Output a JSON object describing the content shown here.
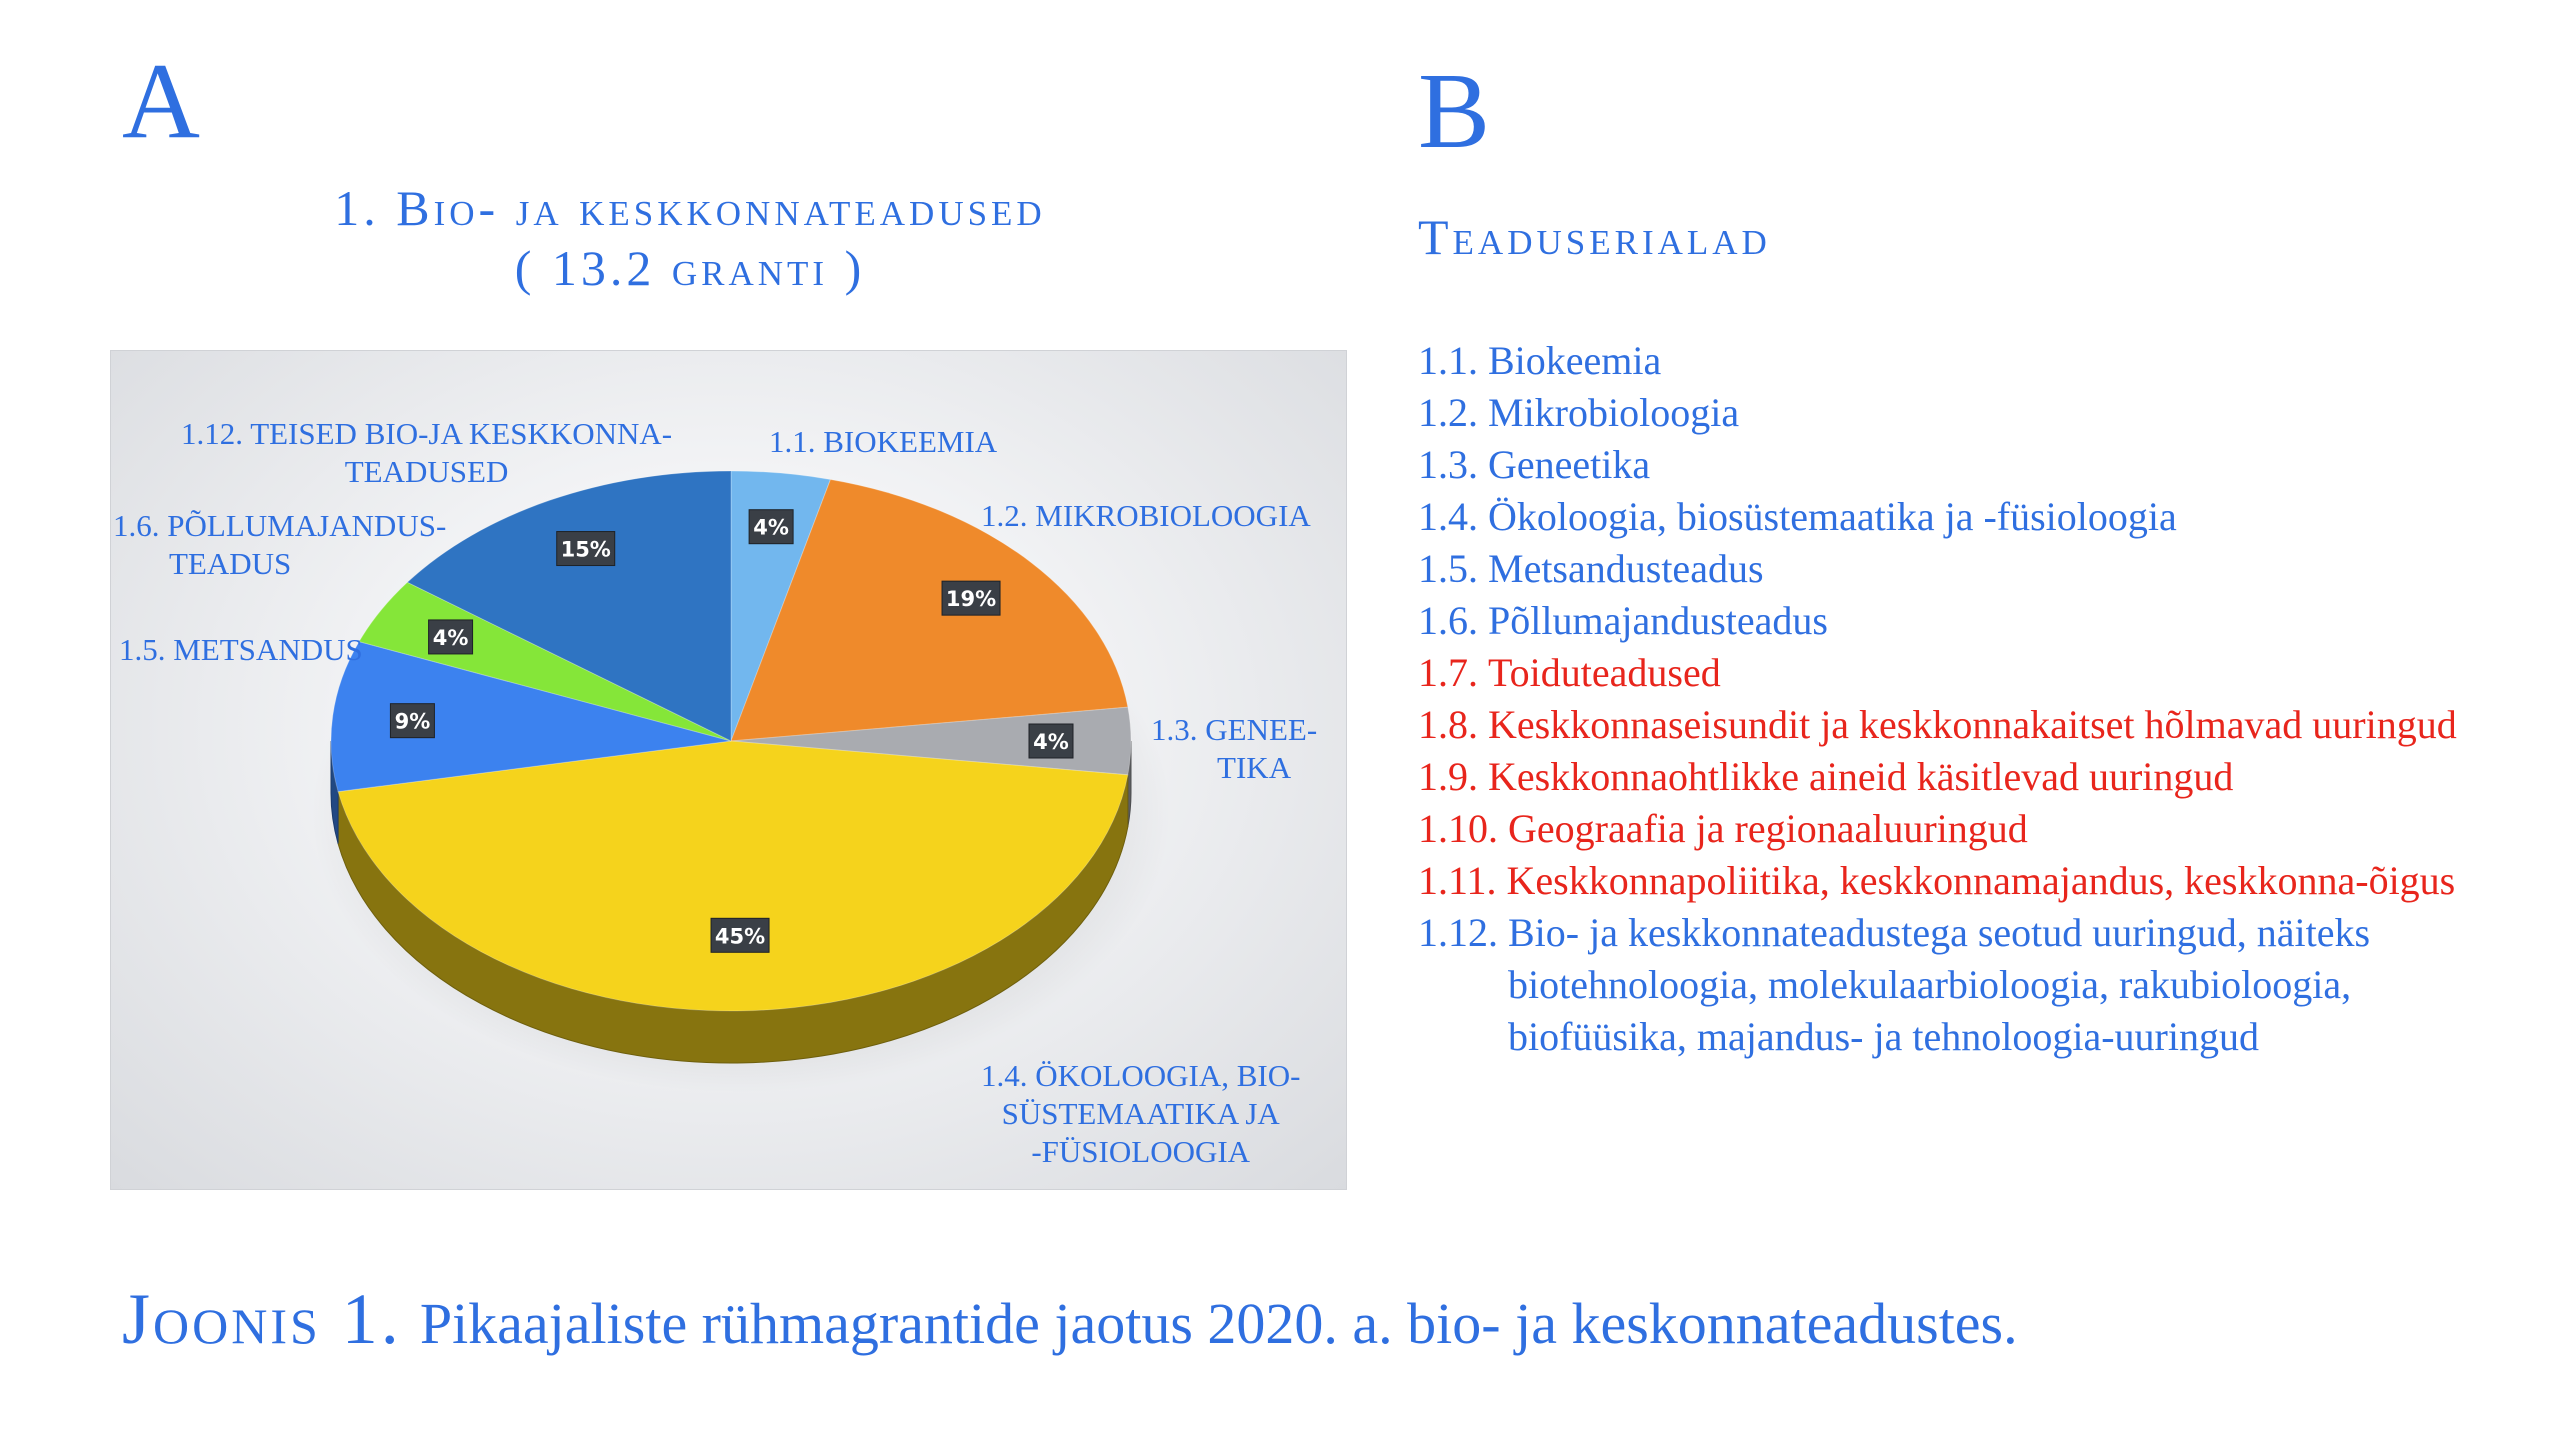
{
  "panel_a_letter": "A",
  "panel_b_letter": "B",
  "panel_a_title_line1": "1. Bio- ja keskkonnateadused",
  "panel_a_title_line2": "( 13.2 granti )",
  "panel_b_title": "Teaduserialad",
  "colors": {
    "accent_blue": "#2f6fe0",
    "red": "#e8251c"
  },
  "chart_data": {
    "type": "pie",
    "slices": [
      {
        "label": "1.1. BIOKEEMIA",
        "value": 4,
        "value_label": "4%",
        "color": "#72b7ee"
      },
      {
        "label": "1.2. MIKROBIOLOOGIA",
        "value": 19,
        "value_label": "19%",
        "color": "#ef8a2b"
      },
      {
        "label": "1.3. GENEE- TIKA",
        "value": 4,
        "value_label": "4%",
        "color": "#a9abb0"
      },
      {
        "label": "1.4. ÖKOLOOGIA, BIO- SÜSTEMAATIKA JA -FÜSIOLOOGIA",
        "value": 45,
        "value_label": "45%",
        "color": "#f5d31c"
      },
      {
        "label": "1.5. METSANDUS",
        "value": 9,
        "value_label": "9%",
        "color": "#3c82ef"
      },
      {
        "label": "1.6. PÕLLUMAJANDUS- TEADUS",
        "value": 4,
        "value_label": "4%",
        "color": "#85e639"
      },
      {
        "label": "1.12. TEISED BIO-JA KESKKONNA- TEADUSED",
        "value": 15,
        "value_label": "15%",
        "color": "#2f74c2"
      }
    ]
  },
  "slice_labels": {
    "s11": "1.1. BIOKEEMIA",
    "s12": "1.2. MIKROBIOLOOGIA",
    "s13_l1": "1.3. GENEE-",
    "s13_l2": "TIKA",
    "s14_l1": "1.4. ÖKOLOOGIA, BIO-",
    "s14_l2": "SÜSTEMAATIKA JA",
    "s14_l3": "-FÜSIOLOOGIA",
    "s15": "1.5. METSANDUS",
    "s16_l1": "1.6. PÕLLUMAJANDUS-",
    "s16_l2": "TEADUS",
    "s112_l1": "1.12. TEISED BIO-JA KESKKONNA-",
    "s112_l2": "TEADUSED"
  },
  "disciplines": [
    {
      "num": "1.1.",
      "text": "Biokeemia",
      "color": "blue"
    },
    {
      "num": "1.2.",
      "text": "Mikrobioloogia",
      "color": "blue"
    },
    {
      "num": "1.3.",
      "text": "Geneetika",
      "color": "blue"
    },
    {
      "num": "1.4.",
      "text": "Ökoloogia, biosüstemaatika ja -füsioloogia",
      "color": "blue"
    },
    {
      "num": "1.5.",
      "text": "Metsandusteadus",
      "color": "blue"
    },
    {
      "num": "1.6.",
      "text": "Põllumajandusteadus",
      "color": "blue"
    },
    {
      "num": "1.7.",
      "text": "Toiduteadused",
      "color": "red"
    },
    {
      "num": "1.8.",
      "text": "Keskkonnaseisundit ja keskkonnakaitset hõlmavad uuringud",
      "color": "red"
    },
    {
      "num": "1.9.",
      "text": "Keskkonnaohtlikke aineid käsitlevad uuringud",
      "color": "red"
    },
    {
      "num": "1.10.",
      "text": "Geograafia ja regionaaluuringud",
      "color": "red"
    },
    {
      "num": "1.11.",
      "text": "Keskkonnapoliitika, keskkonnamajandus, keskkonna-õigus",
      "color": "red"
    },
    {
      "num": "1.12.",
      "text": "Bio- ja keskkonnateadustega seotud uuringud, näiteks  biotehnoloogia,  molekulaarbioloogia, rakubioloogia, biofüüsika, majandus- ja tehnoloogia-uuringud",
      "color": "blue"
    }
  ],
  "caption_label": "Joonis 1.",
  "caption_text": "Pikaajaliste rühmagrantide jaotus 2020. a. bio- ja keskonnateadustes."
}
